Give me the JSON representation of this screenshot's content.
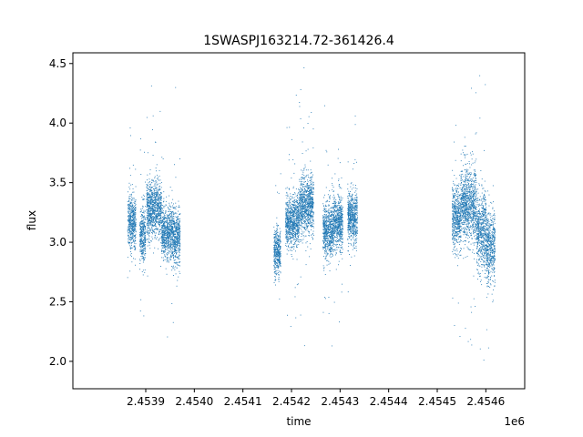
{
  "chart_data": {
    "type": "scatter",
    "title": "1SWASPJ163214.72-361426.4",
    "xlabel": "time",
    "ylabel": "flux",
    "x_offset_label": "1e6",
    "xlim": [
      2.45375,
      2.45468
    ],
    "ylim": [
      1.77,
      4.59
    ],
    "x_ticks": [
      2.4539,
      2.454,
      2.4541,
      2.4542,
      2.4543,
      2.4544,
      2.4545,
      2.4546
    ],
    "x_tick_labels": [
      "2.4539",
      "2.4540",
      "2.4541",
      "2.4542",
      "2.4543",
      "2.4544",
      "2.4545",
      "2.4546"
    ],
    "y_ticks": [
      2.0,
      2.5,
      3.0,
      3.5,
      4.0,
      4.5
    ],
    "y_tick_labels": [
      "2.0",
      "2.5",
      "3.0",
      "3.5",
      "4.0",
      "4.5"
    ],
    "grid": false,
    "marker_color": "#1f77b4",
    "clusters": [
      {
        "x": [
          2.453862,
          2.453879
        ],
        "center": 3.18,
        "spread": 0.2
      },
      {
        "x": [
          2.453887,
          2.453899
        ],
        "center": 3.05,
        "spread": 0.2
      },
      {
        "x": [
          2.453901,
          2.453932
        ],
        "center": 3.28,
        "spread": 0.22
      },
      {
        "x": [
          2.453932,
          2.453955
        ],
        "center": 3.08,
        "spread": 0.2
      },
      {
        "x": [
          2.453955,
          2.45397
        ],
        "center": 3.05,
        "spread": 0.22
      },
      {
        "x": [
          2.454163,
          2.454177
        ],
        "center": 2.92,
        "spread": 0.18
      },
      {
        "x": [
          2.454187,
          2.454215
        ],
        "center": 3.18,
        "spread": 0.2
      },
      {
        "x": [
          2.454215,
          2.454245
        ],
        "center": 3.32,
        "spread": 0.22
      },
      {
        "x": [
          2.454264,
          2.454285
        ],
        "center": 3.1,
        "spread": 0.2
      },
      {
        "x": [
          2.454285,
          2.454305
        ],
        "center": 3.18,
        "spread": 0.2
      },
      {
        "x": [
          2.454315,
          2.454335
        ],
        "center": 3.22,
        "spread": 0.2
      },
      {
        "x": [
          2.45453,
          2.454548
        ],
        "center": 3.22,
        "spread": 0.25
      },
      {
        "x": [
          2.454548,
          2.45458
        ],
        "center": 3.32,
        "spread": 0.28
      },
      {
        "x": [
          2.45458,
          2.4546
        ],
        "center": 3.1,
        "spread": 0.28
      },
      {
        "x": [
          2.4546,
          2.454618
        ],
        "center": 2.95,
        "spread": 0.28
      }
    ]
  }
}
